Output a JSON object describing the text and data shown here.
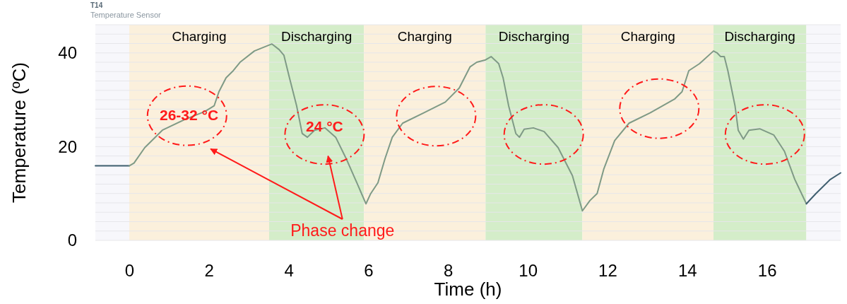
{
  "chart_data": {
    "type": "line",
    "title": "T14",
    "subtitle": "Temperature Sensor",
    "xlabel": "Time (h)",
    "ylabel": "Temperature (ºC)",
    "xlim": [
      -0.85,
      17.85
    ],
    "ylim": [
      0,
      46
    ],
    "xticks": [
      0,
      2,
      4,
      6,
      8,
      10,
      12,
      14,
      16
    ],
    "yticks": [
      0,
      {
        "value": 2,
        "label": null
      },
      {
        "value": 4,
        "label": null
      },
      {
        "value": 6,
        "label": null
      },
      {
        "value": 8,
        "label": null
      },
      {
        "value": 10,
        "label": null
      },
      {
        "value": 12,
        "label": null
      },
      {
        "value": 14,
        "label": null
      },
      {
        "value": 16,
        "label": null
      },
      {
        "value": 18,
        "label": null
      },
      20,
      {
        "value": 22,
        "label": null
      },
      {
        "value": 24,
        "label": null
      },
      {
        "value": 26,
        "label": null
      },
      {
        "value": 28,
        "label": null
      },
      {
        "value": 30,
        "label": null
      },
      {
        "value": 32,
        "label": null
      },
      {
        "value": 34,
        "label": null
      },
      {
        "value": 36,
        "label": null
      },
      {
        "value": 38,
        "label": null
      },
      40,
      {
        "value": 42,
        "label": null
      },
      {
        "value": 44,
        "label": null
      },
      {
        "value": 46,
        "label": null
      }
    ],
    "grid": "y",
    "marker": "none",
    "line_style": "solid",
    "bands": [
      {
        "axis": "x",
        "from": -0.85,
        "to": 0,
        "color": "#f7f7fb"
      },
      {
        "axis": "x",
        "from": 0,
        "to": 3.51,
        "label": "Charging",
        "color": "#fbf0dc"
      },
      {
        "axis": "x",
        "from": 3.51,
        "to": 5.89,
        "label": "Discharging",
        "color": "#d4edc9"
      },
      {
        "axis": "x",
        "from": 5.89,
        "to": 8.94,
        "label": "Charging",
        "color": "#fbf0dc"
      },
      {
        "axis": "x",
        "from": 8.94,
        "to": 11.37,
        "label": "Discharging",
        "color": "#d4edc9"
      },
      {
        "axis": "x",
        "from": 11.37,
        "to": 14.66,
        "label": "Charging",
        "color": "#fbf0dc"
      },
      {
        "axis": "x",
        "from": 14.66,
        "to": 16.99,
        "label": "Discharging",
        "color": "#d4edc9"
      },
      {
        "axis": "x",
        "from": 16.99,
        "to": 17.85,
        "color": "#f7f7fb"
      }
    ],
    "annotations": [
      {
        "text": "26-32 °C",
        "x": 1.5,
        "y": 26.5
      },
      {
        "text": "24 °C",
        "x": 4.9,
        "y": 24
      },
      "Phase change"
    ],
    "series": [
      {
        "color": "#3f5f70",
        "x": [
          -0.85,
          0
        ],
        "values": [
          15.9,
          15.9
        ]
      },
      {
        "color": "#7f9a86",
        "x": [
          0,
          0.12,
          0.39,
          0.83,
          1.37,
          1.9,
          2.13,
          2.25,
          2.43,
          2.61,
          2.78,
          3.14,
          3.58,
          3.76,
          3.88,
          4.02,
          4.2,
          4.34,
          4.47,
          4.65,
          4.91,
          5.18,
          5.44,
          5.71,
          5.94,
          6.06,
          6.24,
          6.42,
          6.6,
          6.86,
          7.39,
          7.93,
          8.28,
          8.55,
          8.72,
          8.94,
          9.08,
          9.17,
          9.27,
          9.38,
          9.52,
          9.7,
          9.79,
          9.91,
          10.14,
          10.41,
          10.76,
          11.12,
          11.37,
          11.56,
          11.74,
          11.91,
          12.18,
          12.54,
          13.07,
          13.69,
          13.87,
          14.04,
          14.31,
          14.66,
          14.75,
          14.84,
          14.93,
          15.02,
          15.2,
          15.28,
          15.41,
          15.55,
          15.82,
          16.17,
          16.44,
          16.7,
          16.99
        ],
        "values": [
          15.9,
          16.5,
          19.8,
          23.5,
          25.7,
          27.5,
          28.7,
          31.7,
          34.7,
          36.2,
          38.0,
          40.4,
          41.9,
          40.7,
          39.5,
          34.7,
          28.7,
          22.8,
          22.0,
          23.5,
          24.0,
          22.0,
          17.5,
          12.3,
          7.8,
          10.0,
          12.3,
          17.5,
          22.0,
          25.0,
          27.2,
          29.5,
          32.5,
          37.0,
          38.0,
          38.5,
          39.2,
          38.5,
          37.7,
          34.7,
          28.7,
          22.8,
          22.0,
          23.7,
          24.0,
          23.2,
          19.8,
          13.8,
          6.3,
          8.5,
          10.0,
          15.3,
          21.3,
          25.0,
          27.2,
          30.2,
          31.7,
          36.2,
          37.7,
          40.4,
          40.0,
          39.2,
          39.2,
          36.2,
          28.7,
          23.5,
          21.6,
          23.5,
          23.8,
          22.5,
          19.0,
          13.0,
          7.8
        ]
      },
      {
        "color": "#3f5f70",
        "x": [
          16.99,
          17.23,
          17.59,
          17.85
        ],
        "values": [
          7.8,
          10.0,
          13.0,
          14.4
        ]
      }
    ]
  }
}
